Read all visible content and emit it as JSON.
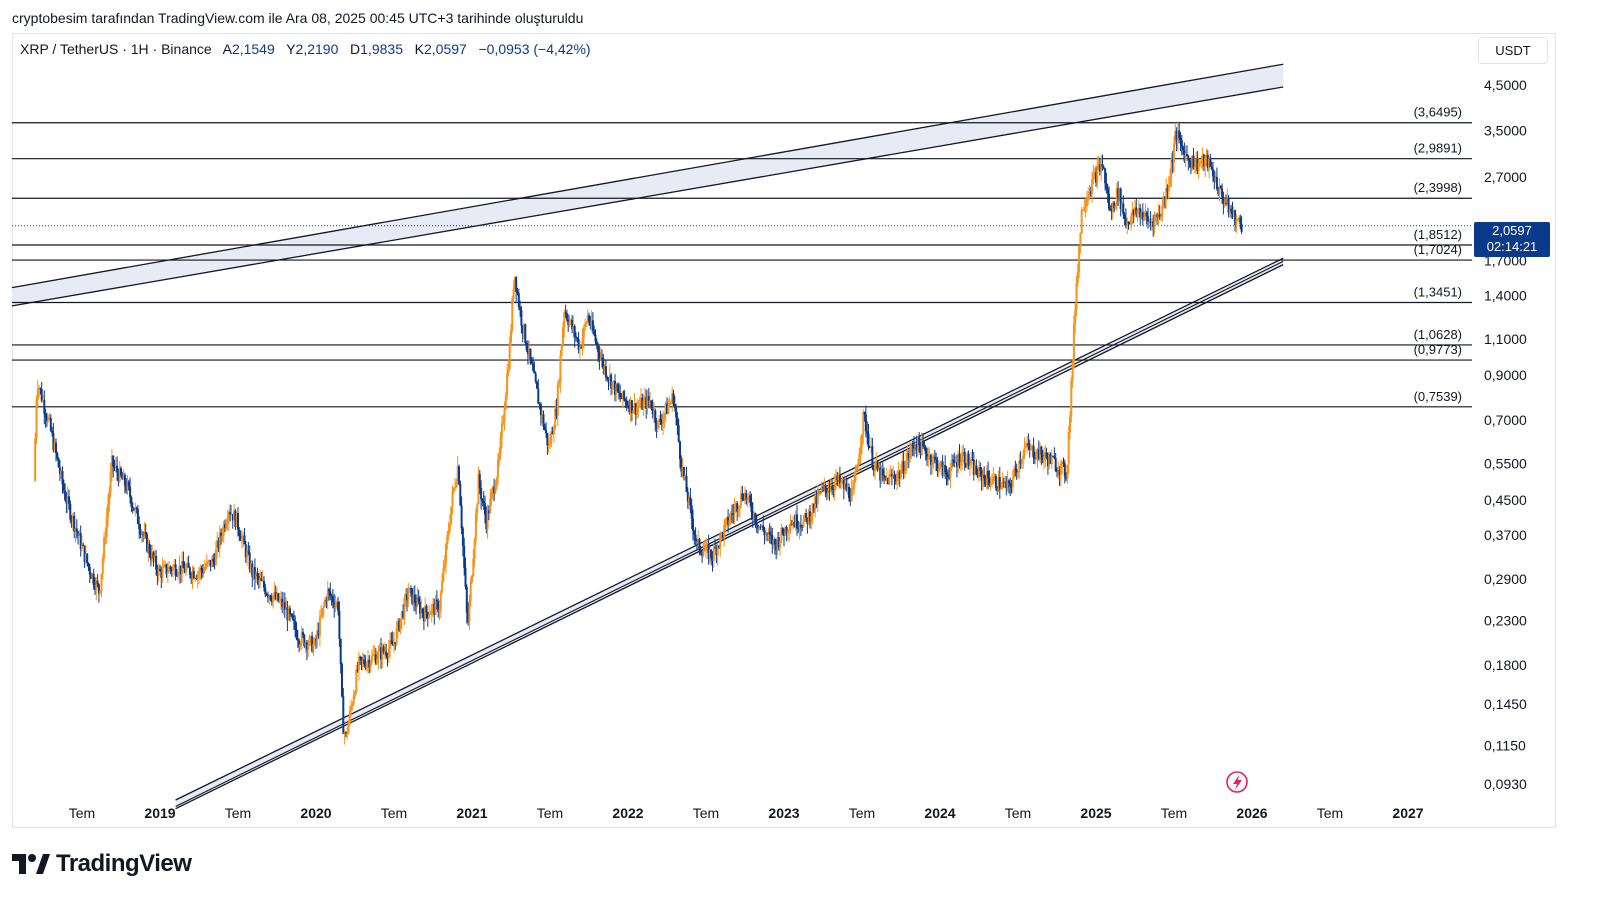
{
  "caption": "cryptobesim tarafından TradingView.com ile Ara 08, 2025 00:45 UTC+3 tarihinde oluşturuldu",
  "symbol": {
    "name": "XRP / TetherUS · 1H · Binance",
    "open_label": "A",
    "open": "2,1549",
    "high_label": "Y",
    "high": "2,2190",
    "low_label": "D",
    "low": "1,9835",
    "close_label": "K",
    "close": "2,0597",
    "change": "−0,0953 (−4,42%)"
  },
  "currency": "USDT",
  "last_price": {
    "value": "2,0597",
    "countdown": "02:14:21"
  },
  "brand": "TradingView",
  "colors": {
    "up": "#f7931a",
    "down": "#0b3a8c",
    "line": "#131722",
    "channel_fill": "#e8ebf6",
    "tag": "#0b3a8c"
  },
  "chart_data": {
    "type": "candlestick",
    "scale": "log",
    "ylim": [
      0.085,
      5.0
    ],
    "y_ticks": [
      {
        "v": 4.5,
        "label": "4,5000"
      },
      {
        "v": 3.5,
        "label": "3,5000"
      },
      {
        "v": 2.7,
        "label": "2,7000"
      },
      {
        "v": 1.7,
        "label": "1,7000"
      },
      {
        "v": 1.4,
        "label": "1,4000"
      },
      {
        "v": 1.1,
        "label": "1,1000"
      },
      {
        "v": 0.9,
        "label": "0,9000"
      },
      {
        "v": 0.7,
        "label": "0,7000"
      },
      {
        "v": 0.55,
        "label": "0,5500"
      },
      {
        "v": 0.45,
        "label": "0,4500"
      },
      {
        "v": 0.37,
        "label": "0,3700"
      },
      {
        "v": 0.29,
        "label": "0,2900"
      },
      {
        "v": 0.23,
        "label": "0,2300"
      },
      {
        "v": 0.18,
        "label": "0,1800"
      },
      {
        "v": 0.145,
        "label": "0,1450"
      },
      {
        "v": 0.115,
        "label": "0,1150"
      },
      {
        "v": 0.093,
        "label": "0,0930"
      }
    ],
    "x_ticks": [
      {
        "t": 2018.5,
        "label": "Tem",
        "bold": false
      },
      {
        "t": 2019.0,
        "label": "2019",
        "bold": true
      },
      {
        "t": 2019.5,
        "label": "Tem",
        "bold": false
      },
      {
        "t": 2020.0,
        "label": "2020",
        "bold": true
      },
      {
        "t": 2020.5,
        "label": "Tem",
        "bold": false
      },
      {
        "t": 2021.0,
        "label": "2021",
        "bold": true
      },
      {
        "t": 2021.5,
        "label": "Tem",
        "bold": false
      },
      {
        "t": 2022.0,
        "label": "2022",
        "bold": true
      },
      {
        "t": 2022.5,
        "label": "Tem",
        "bold": false
      },
      {
        "t": 2023.0,
        "label": "2023",
        "bold": true
      },
      {
        "t": 2023.5,
        "label": "Tem",
        "bold": false
      },
      {
        "t": 2024.0,
        "label": "2024",
        "bold": true
      },
      {
        "t": 2024.5,
        "label": "Tem",
        "bold": false
      },
      {
        "t": 2025.0,
        "label": "2025",
        "bold": true
      },
      {
        "t": 2025.5,
        "label": "Tem",
        "bold": false
      },
      {
        "t": 2026.0,
        "label": "2026",
        "bold": true
      },
      {
        "t": 2026.5,
        "label": "Tem",
        "bold": false
      },
      {
        "t": 2027.0,
        "label": "2027",
        "bold": true
      }
    ],
    "horizontal_levels": [
      {
        "v": 3.6495,
        "label": "(3,6495)"
      },
      {
        "v": 2.9891,
        "label": "(2,9891)"
      },
      {
        "v": 2.3998,
        "label": "(2,3998)"
      },
      {
        "v": 1.8512,
        "label": "(1,8512)"
      },
      {
        "v": 1.7024,
        "label": "(1,7024)"
      },
      {
        "v": 1.3451,
        "label": "(1,3451)"
      },
      {
        "v": 1.0628,
        "label": "(1,0628)"
      },
      {
        "v": 0.9773,
        "label": "(0,9773)"
      },
      {
        "v": 0.7539,
        "label": "(0,7539)"
      }
    ],
    "channels": [
      {
        "name": "upper-channel",
        "t1": 2018.0,
        "a1": 1.45,
        "b1": 1.31,
        "t2": 2026.2,
        "a2": 5.05,
        "b2": 4.45
      },
      {
        "name": "lower-channel",
        "t1": 2019.1,
        "a1": 0.085,
        "b1": 0.081,
        "t2": 2026.2,
        "a2": 1.72,
        "b2": 1.66
      }
    ],
    "lower_channel_midline": {
      "t1": 2019.1,
      "v1": 0.082,
      "t2": 2026.2,
      "v2": 1.69
    },
    "price_path": [
      [
        2018.2,
        0.5
      ],
      [
        2018.22,
        0.88
      ],
      [
        2018.3,
        0.68
      ],
      [
        2018.4,
        0.46
      ],
      [
        2018.55,
        0.31
      ],
      [
        2018.62,
        0.27
      ],
      [
        2018.7,
        0.55
      ],
      [
        2018.8,
        0.48
      ],
      [
        2018.9,
        0.37
      ],
      [
        2019.0,
        0.3
      ],
      [
        2019.1,
        0.31
      ],
      [
        2019.25,
        0.3
      ],
      [
        2019.35,
        0.32
      ],
      [
        2019.45,
        0.43
      ],
      [
        2019.5,
        0.4
      ],
      [
        2019.6,
        0.3
      ],
      [
        2019.7,
        0.27
      ],
      [
        2019.8,
        0.25
      ],
      [
        2019.9,
        0.21
      ],
      [
        2020.0,
        0.2
      ],
      [
        2020.08,
        0.27
      ],
      [
        2020.15,
        0.25
      ],
      [
        2020.18,
        0.13
      ],
      [
        2020.2,
        0.12
      ],
      [
        2020.28,
        0.18
      ],
      [
        2020.4,
        0.19
      ],
      [
        2020.5,
        0.2
      ],
      [
        2020.6,
        0.27
      ],
      [
        2020.7,
        0.24
      ],
      [
        2020.8,
        0.25
      ],
      [
        2020.88,
        0.45
      ],
      [
        2020.92,
        0.55
      ],
      [
        2020.98,
        0.22
      ],
      [
        2021.05,
        0.5
      ],
      [
        2021.1,
        0.4
      ],
      [
        2021.18,
        0.55
      ],
      [
        2021.25,
        1.05
      ],
      [
        2021.28,
        1.6
      ],
      [
        2021.32,
        1.25
      ],
      [
        2021.4,
        0.9
      ],
      [
        2021.5,
        0.6
      ],
      [
        2021.55,
        0.75
      ],
      [
        2021.6,
        1.3
      ],
      [
        2021.7,
        1.05
      ],
      [
        2021.75,
        1.25
      ],
      [
        2021.85,
        0.95
      ],
      [
        2021.95,
        0.8
      ],
      [
        2022.05,
        0.75
      ],
      [
        2022.15,
        0.78
      ],
      [
        2022.2,
        0.68
      ],
      [
        2022.3,
        0.8
      ],
      [
        2022.35,
        0.55
      ],
      [
        2022.45,
        0.35
      ],
      [
        2022.55,
        0.33
      ],
      [
        2022.65,
        0.4
      ],
      [
        2022.75,
        0.47
      ],
      [
        2022.85,
        0.39
      ],
      [
        2022.95,
        0.35
      ],
      [
        2023.05,
        0.4
      ],
      [
        2023.15,
        0.4
      ],
      [
        2023.25,
        0.47
      ],
      [
        2023.35,
        0.5
      ],
      [
        2023.45,
        0.46
      ],
      [
        2023.52,
        0.72
      ],
      [
        2023.58,
        0.55
      ],
      [
        2023.65,
        0.5
      ],
      [
        2023.75,
        0.52
      ],
      [
        2023.85,
        0.62
      ],
      [
        2023.95,
        0.57
      ],
      [
        2024.05,
        0.52
      ],
      [
        2024.15,
        0.58
      ],
      [
        2024.25,
        0.52
      ],
      [
        2024.35,
        0.5
      ],
      [
        2024.45,
        0.48
      ],
      [
        2024.55,
        0.6
      ],
      [
        2024.65,
        0.58
      ],
      [
        2024.75,
        0.55
      ],
      [
        2024.82,
        0.52
      ],
      [
        2024.85,
        0.85
      ],
      [
        2024.88,
        1.45
      ],
      [
        2024.92,
        2.3
      ],
      [
        2024.96,
        2.5
      ],
      [
        2025.02,
        2.8
      ],
      [
        2025.05,
        2.9
      ],
      [
        2025.1,
        2.2
      ],
      [
        2025.15,
        2.5
      ],
      [
        2025.2,
        2.1
      ],
      [
        2025.28,
        2.25
      ],
      [
        2025.35,
        2.1
      ],
      [
        2025.42,
        2.2
      ],
      [
        2025.48,
        2.7
      ],
      [
        2025.52,
        3.45
      ],
      [
        2025.58,
        3.05
      ],
      [
        2025.65,
        2.9
      ],
      [
        2025.72,
        2.95
      ],
      [
        2025.76,
        2.75
      ],
      [
        2025.8,
        2.5
      ],
      [
        2025.85,
        2.3
      ],
      [
        2025.9,
        2.15
      ],
      [
        2025.94,
        2.06
      ]
    ]
  }
}
